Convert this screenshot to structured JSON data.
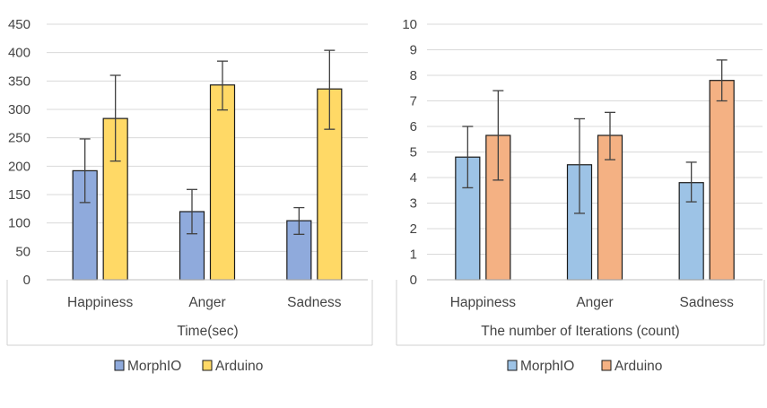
{
  "chart_data": [
    {
      "type": "bar",
      "categories": [
        "Happiness",
        "Anger",
        "Sadness"
      ],
      "xlabel": "Time(sec)",
      "ylabel": "",
      "ylim": [
        0,
        450
      ],
      "yticks": [
        "0",
        "50",
        "100",
        "150",
        "200",
        "250",
        "300",
        "350",
        "400",
        "450"
      ],
      "grid": true,
      "legend": "bottom",
      "series": [
        {
          "name": "MorphIO",
          "color": "#8FAADC",
          "values": [
            192,
            120,
            104
          ],
          "error": [
            [
              136,
              248
            ],
            [
              81,
              159
            ],
            [
              80,
              127
            ]
          ]
        },
        {
          "name": "Arduino",
          "color": "#FFD966",
          "values": [
            284,
            343,
            336
          ],
          "error": [
            [
              209,
              360
            ],
            [
              299,
              385
            ],
            [
              265,
              404
            ]
          ]
        }
      ]
    },
    {
      "type": "bar",
      "categories": [
        "Happiness",
        "Anger",
        "Sadness"
      ],
      "xlabel": "The number of Iterations (count)",
      "ylabel": "",
      "ylim": [
        0,
        10
      ],
      "yticks": [
        "0",
        "1",
        "2",
        "3",
        "4",
        "5",
        "6",
        "7",
        "8",
        "9",
        "10"
      ],
      "grid": true,
      "legend": "bottom",
      "series": [
        {
          "name": "MorphIO",
          "color": "#9DC3E6",
          "values": [
            4.8,
            4.5,
            3.8
          ],
          "error": [
            [
              3.6,
              6.0
            ],
            [
              2.6,
              6.3
            ],
            [
              3.05,
              4.6
            ]
          ]
        },
        {
          "name": "Arduino",
          "color": "#F4B183",
          "values": [
            5.65,
            5.65,
            7.8
          ],
          "error": [
            [
              3.9,
              7.4
            ],
            [
              4.7,
              6.55
            ],
            [
              7.0,
              8.6
            ]
          ]
        }
      ]
    }
  ]
}
